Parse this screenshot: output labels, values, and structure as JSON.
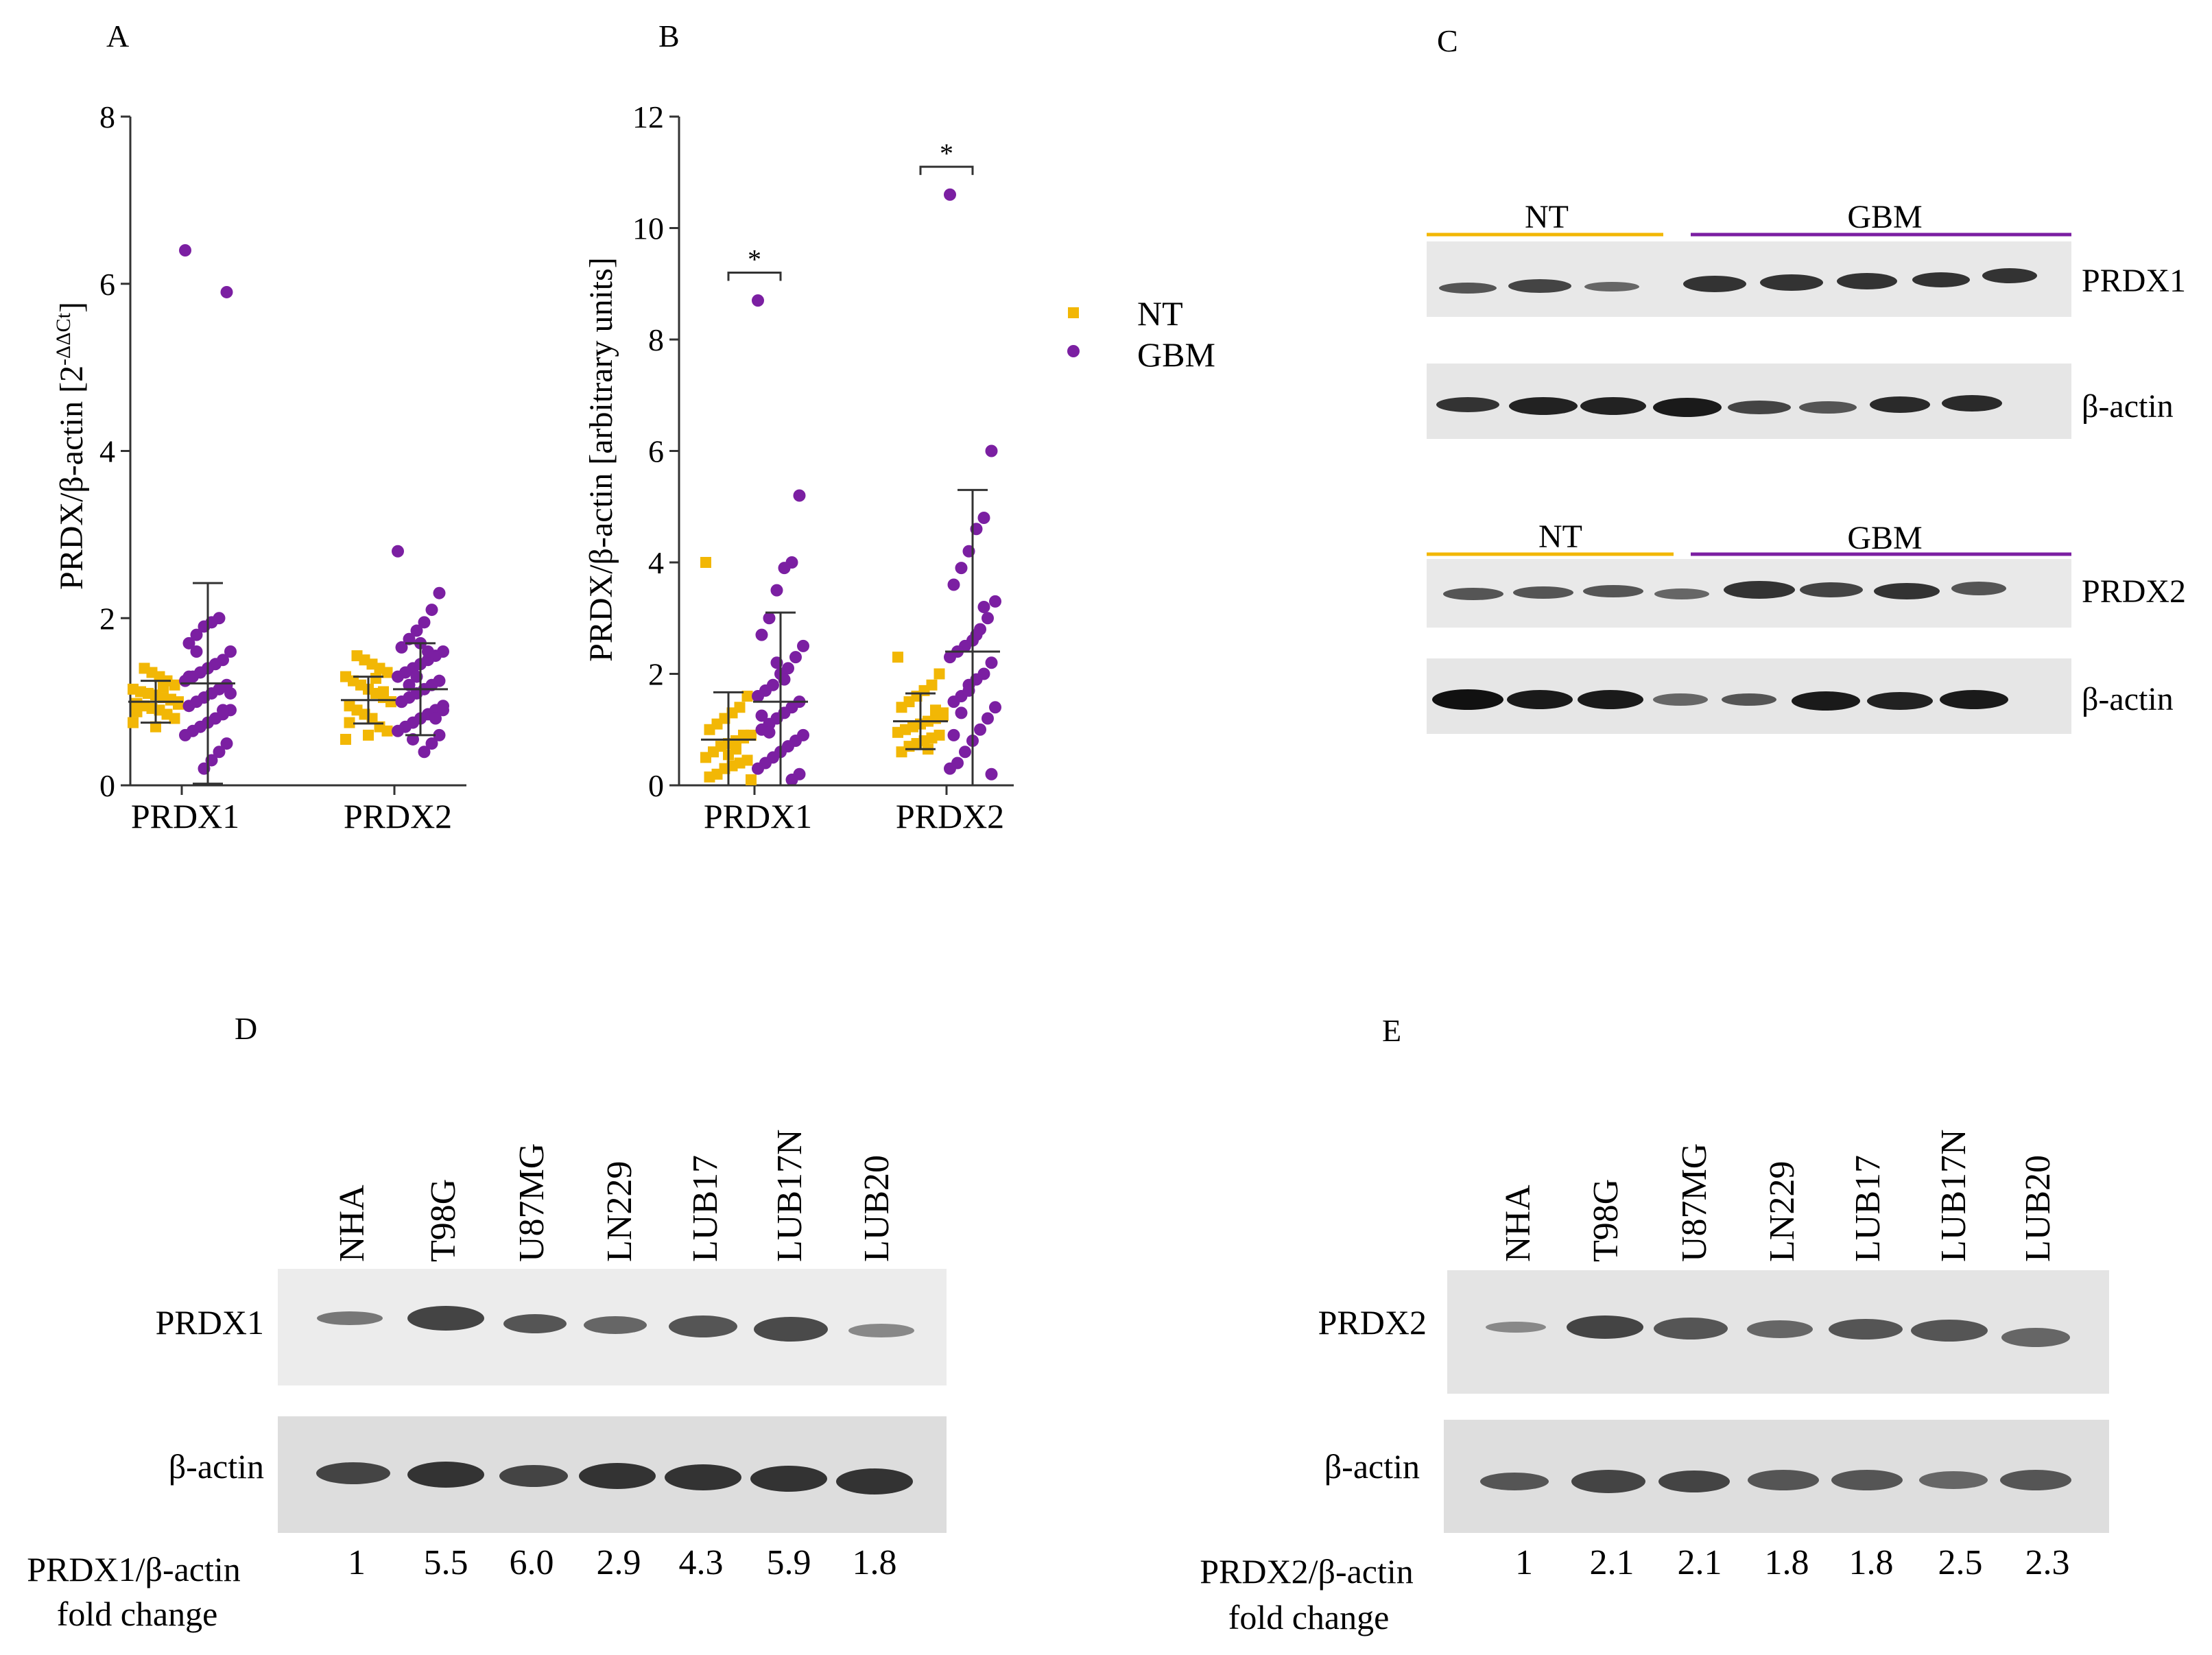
{
  "colors": {
    "nt": "#F2B705",
    "gbm": "#7B1FA2",
    "axis": "#333333"
  },
  "panels": {
    "A": {
      "label": "A",
      "ylabel": "PRDX/β-actin [2",
      "ylabel_sup": "-ΔΔCt",
      "ylabel_close": "]"
    },
    "B": {
      "label": "B",
      "ylabel": "PRDX/β-actin [arbitrary units]",
      "sig_marker": "*"
    },
    "C": {
      "label": "C",
      "group_nt": "NT",
      "group_gbm": "GBM",
      "blot_labels": [
        "PRDX1",
        "β-actin",
        "PRDX2",
        "β-actin"
      ]
    },
    "D": {
      "label": "D",
      "lanes": [
        "NHA",
        "T98G",
        "U87MG",
        "LN229",
        "LUB17",
        "LUB17N",
        "LUB20"
      ],
      "blot_labels": [
        "PRDX1",
        "β-actin"
      ],
      "fold_label_1": "PRDX1/β-actin",
      "fold_label_2": "fold change",
      "fold_values": [
        "1",
        "5.5",
        "6.0",
        "2.9",
        "4.3",
        "5.9",
        "1.8"
      ]
    },
    "E": {
      "label": "E",
      "lanes": [
        "NHA",
        "T98G",
        "U87MG",
        "LN229",
        "LUB17",
        "LUB17N",
        "LUB20"
      ],
      "blot_labels": [
        "PRDX2",
        "β-actin"
      ],
      "fold_label_1": "PRDX2/β-actin",
      "fold_label_2": "fold change",
      "fold_values": [
        "1",
        "2.1",
        "2.1",
        "1.8",
        "1.8",
        "2.5",
        "2.3"
      ]
    }
  },
  "legend": {
    "nt": "NT",
    "gbm": "GBM"
  },
  "chart_data": [
    {
      "panel": "A",
      "type": "scatter",
      "categories": [
        "PRDX1",
        "PRDX2"
      ],
      "ylim": [
        0,
        8
      ],
      "yticks": [
        "0",
        "2",
        "4",
        "6",
        "8"
      ],
      "series": [
        {
          "name": "NT",
          "group": 0,
          "offset": -1,
          "mean": 1.0,
          "sd": 0.25,
          "values": [
            0.75,
            0.8,
            0.85,
            0.9,
            0.92,
            0.95,
            0.98,
            1.0,
            1.02,
            1.05,
            1.08,
            1.1,
            1.12,
            1.15,
            1.2,
            1.25,
            1.3,
            1.35,
            1.4,
            0.88,
            0.97,
            1.03,
            1.18,
            0.7
          ]
        },
        {
          "name": "GBM",
          "group": 0,
          "offset": 1,
          "mean": 1.22,
          "sd": 1.2,
          "values": [
            6.4,
            5.9,
            2.0,
            1.95,
            1.9,
            1.8,
            1.7,
            1.6,
            1.5,
            1.45,
            1.4,
            1.35,
            1.3,
            1.25,
            1.2,
            1.15,
            1.1,
            1.05,
            1.0,
            0.95,
            0.9,
            0.85,
            0.8,
            0.75,
            0.7,
            0.65,
            0.6,
            0.5,
            0.4,
            0.3,
            0.2,
            1.6,
            1.3,
            1.1,
            0.9
          ]
        },
        {
          "name": "NT",
          "group": 1,
          "offset": -1,
          "mean": 1.02,
          "sd": 0.28,
          "values": [
            0.55,
            0.65,
            0.7,
            0.8,
            0.85,
            0.9,
            0.95,
            1.0,
            1.05,
            1.1,
            1.15,
            1.2,
            1.25,
            1.3,
            1.35,
            1.4,
            1.45,
            1.5,
            1.55,
            0.75,
            1.0,
            1.12,
            1.28,
            0.6
          ]
        },
        {
          "name": "GBM",
          "group": 1,
          "offset": 1,
          "mean": 1.15,
          "sd": 0.55,
          "values": [
            2.8,
            2.3,
            2.1,
            1.95,
            1.85,
            1.75,
            1.65,
            1.6,
            1.55,
            1.5,
            1.45,
            1.4,
            1.35,
            1.3,
            1.25,
            1.2,
            1.15,
            1.1,
            1.05,
            1.0,
            0.95,
            0.9,
            0.85,
            0.8,
            0.75,
            0.7,
            0.65,
            0.6,
            0.5,
            0.4,
            1.3,
            1.2,
            1.0,
            0.9,
            0.8,
            1.6,
            1.7,
            0.55
          ]
        }
      ]
    },
    {
      "panel": "B",
      "type": "scatter",
      "categories": [
        "PRDX1",
        "PRDX2"
      ],
      "ylim": [
        0,
        12
      ],
      "yticks": [
        "0",
        "2",
        "4",
        "6",
        "8",
        "10",
        "12"
      ],
      "significance": [
        0,
        1
      ],
      "series": [
        {
          "name": "NT",
          "group": 0,
          "offset": -1,
          "mean": 0.82,
          "sd": 0.85,
          "values": [
            4.0,
            1.6,
            1.4,
            1.3,
            1.2,
            1.1,
            1.0,
            0.9,
            0.85,
            0.8,
            0.75,
            0.7,
            0.6,
            0.5,
            0.45,
            0.4,
            0.35,
            0.3,
            0.2,
            0.15,
            0.1,
            0.9,
            0.65,
            0.55
          ]
        },
        {
          "name": "GBM",
          "group": 0,
          "offset": 1,
          "mean": 1.5,
          "sd": 1.6,
          "values": [
            8.7,
            5.2,
            4.0,
            3.9,
            3.5,
            3.0,
            2.7,
            2.5,
            2.3,
            2.1,
            2.0,
            1.8,
            1.7,
            1.6,
            1.5,
            1.4,
            1.3,
            1.2,
            1.1,
            1.0,
            0.9,
            0.8,
            0.7,
            0.6,
            0.5,
            0.4,
            0.3,
            0.2,
            0.1,
            1.9,
            2.2,
            0.95,
            1.25
          ]
        },
        {
          "name": "NT",
          "group": 1,
          "offset": -1,
          "mean": 1.15,
          "sd": 0.5,
          "values": [
            2.3,
            2.0,
            1.8,
            1.7,
            1.6,
            1.5,
            1.4,
            1.3,
            1.2,
            1.15,
            1.1,
            1.05,
            1.0,
            0.95,
            0.9,
            0.85,
            0.8,
            0.75,
            0.7,
            0.6,
            1.25,
            1.35,
            0.65
          ]
        },
        {
          "name": "GBM",
          "group": 1,
          "offset": 1,
          "mean": 2.4,
          "sd": 2.9,
          "values": [
            10.6,
            6.0,
            4.8,
            4.6,
            4.2,
            3.9,
            3.6,
            3.3,
            3.0,
            2.8,
            2.6,
            2.5,
            2.4,
            2.3,
            2.2,
            2.0,
            1.9,
            1.8,
            1.6,
            1.5,
            1.4,
            1.2,
            1.0,
            0.8,
            0.6,
            0.4,
            0.3,
            0.2,
            3.2,
            2.7,
            1.7,
            1.3,
            0.9
          ]
        }
      ]
    }
  ]
}
